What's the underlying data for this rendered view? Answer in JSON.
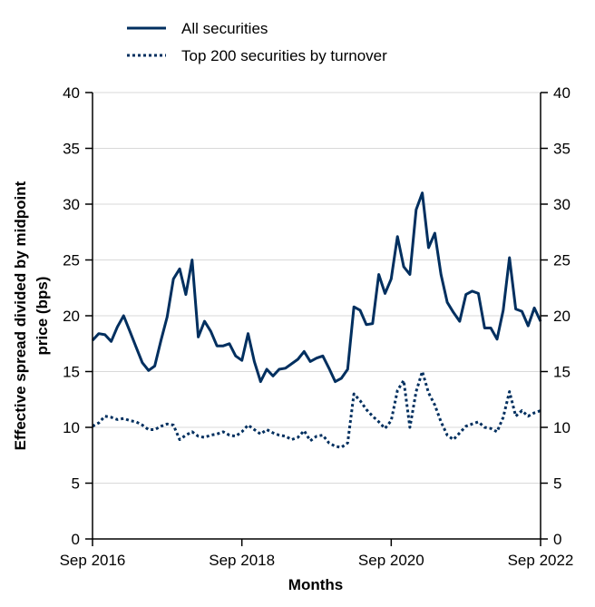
{
  "chart_data": {
    "type": "line",
    "title": "",
    "xlabel": "Months",
    "ylabel_lines": [
      "Effective spread divided by midpoint",
      "price (bps)"
    ],
    "ylim": [
      0,
      40
    ],
    "yticks": [
      "0",
      "5",
      "10",
      "15",
      "20",
      "25",
      "30",
      "35",
      "40"
    ],
    "secondary_y_axis": true,
    "xlim": [
      "2016-09",
      "2022-09"
    ],
    "xticks": [
      {
        "label": "Sep 2016",
        "date": "2016-09"
      },
      {
        "label": "Sep 2018",
        "date": "2018-09"
      },
      {
        "label": "Sep 2020",
        "date": "2020-09"
      },
      {
        "label": "Sep 2022",
        "date": "2022-09"
      }
    ],
    "grid": "horizontal",
    "legend_position": "top-left",
    "series": [
      {
        "name": "All securities",
        "style": "solid",
        "color": "#002f5f",
        "points": [
          [
            "2016-09",
            17.8
          ],
          [
            "2016-10",
            18.4
          ],
          [
            "2016-11",
            18.3
          ],
          [
            "2016-12",
            17.7
          ],
          [
            "2017-01",
            19.0
          ],
          [
            "2017-02",
            20.0
          ],
          [
            "2017-03",
            18.6
          ],
          [
            "2017-04",
            17.2
          ],
          [
            "2017-05",
            15.8
          ],
          [
            "2017-06",
            15.1
          ],
          [
            "2017-07",
            15.5
          ],
          [
            "2017-08",
            17.8
          ],
          [
            "2017-09",
            19.9
          ],
          [
            "2017-10",
            23.3
          ],
          [
            "2017-11",
            24.2
          ],
          [
            "2017-12",
            21.9
          ],
          [
            "2018-01",
            25.0
          ],
          [
            "2018-02",
            18.1
          ],
          [
            "2018-03",
            19.5
          ],
          [
            "2018-04",
            18.6
          ],
          [
            "2018-05",
            17.3
          ],
          [
            "2018-06",
            17.3
          ],
          [
            "2018-07",
            17.5
          ],
          [
            "2018-08",
            16.4
          ],
          [
            "2018-09",
            16.0
          ],
          [
            "2018-10",
            18.4
          ],
          [
            "2018-11",
            15.9
          ],
          [
            "2018-12",
            14.1
          ],
          [
            "2019-01",
            15.2
          ],
          [
            "2019-02",
            14.6
          ],
          [
            "2019-03",
            15.2
          ],
          [
            "2019-04",
            15.3
          ],
          [
            "2019-05",
            15.7
          ],
          [
            "2019-06",
            16.1
          ],
          [
            "2019-07",
            16.8
          ],
          [
            "2019-08",
            15.9
          ],
          [
            "2019-09",
            16.2
          ],
          [
            "2019-10",
            16.4
          ],
          [
            "2019-11",
            15.3
          ],
          [
            "2019-12",
            14.1
          ],
          [
            "2020-01",
            14.4
          ],
          [
            "2020-02",
            15.2
          ],
          [
            "2020-03",
            20.8
          ],
          [
            "2020-04",
            20.5
          ],
          [
            "2020-05",
            19.2
          ],
          [
            "2020-06",
            19.3
          ],
          [
            "2020-07",
            23.7
          ],
          [
            "2020-08",
            22.0
          ],
          [
            "2020-09",
            23.3
          ],
          [
            "2020-10",
            27.1
          ],
          [
            "2020-11",
            24.4
          ],
          [
            "2020-12",
            23.7
          ],
          [
            "2021-01",
            29.5
          ],
          [
            "2021-02",
            31.0
          ],
          [
            "2021-03",
            26.1
          ],
          [
            "2021-04",
            27.4
          ],
          [
            "2021-05",
            23.7
          ],
          [
            "2021-06",
            21.2
          ],
          [
            "2021-07",
            20.3
          ],
          [
            "2021-08",
            19.5
          ],
          [
            "2021-09",
            21.9
          ],
          [
            "2021-10",
            22.2
          ],
          [
            "2021-11",
            22.0
          ],
          [
            "2021-12",
            18.9
          ],
          [
            "2022-01",
            18.9
          ],
          [
            "2022-02",
            17.9
          ],
          [
            "2022-03",
            20.5
          ],
          [
            "2022-04",
            25.2
          ],
          [
            "2022-05",
            20.6
          ],
          [
            "2022-06",
            20.4
          ],
          [
            "2022-07",
            19.1
          ],
          [
            "2022-08",
            20.7
          ],
          [
            "2022-09",
            19.5
          ]
        ]
      },
      {
        "name": "Top 200 securities by turnover",
        "style": "dotted",
        "color": "#002f5f",
        "points": [
          [
            "2016-09",
            10.1
          ],
          [
            "2016-10",
            10.4
          ],
          [
            "2016-11",
            11.0
          ],
          [
            "2016-12",
            10.9
          ],
          [
            "2017-01",
            10.7
          ],
          [
            "2017-02",
            10.8
          ],
          [
            "2017-03",
            10.6
          ],
          [
            "2017-04",
            10.5
          ],
          [
            "2017-05",
            10.2
          ],
          [
            "2017-06",
            9.8
          ],
          [
            "2017-07",
            9.8
          ],
          [
            "2017-08",
            10.1
          ],
          [
            "2017-09",
            10.3
          ],
          [
            "2017-10",
            10.2
          ],
          [
            "2017-11",
            8.9
          ],
          [
            "2017-12",
            9.3
          ],
          [
            "2018-01",
            9.6
          ],
          [
            "2018-02",
            9.2
          ],
          [
            "2018-03",
            9.1
          ],
          [
            "2018-04",
            9.3
          ],
          [
            "2018-05",
            9.4
          ],
          [
            "2018-06",
            9.6
          ],
          [
            "2018-07",
            9.3
          ],
          [
            "2018-08",
            9.2
          ],
          [
            "2018-09",
            9.6
          ],
          [
            "2018-10",
            10.2
          ],
          [
            "2018-11",
            9.8
          ],
          [
            "2018-12",
            9.4
          ],
          [
            "2019-01",
            9.8
          ],
          [
            "2019-02",
            9.5
          ],
          [
            "2019-03",
            9.3
          ],
          [
            "2019-04",
            9.2
          ],
          [
            "2019-05",
            8.9
          ],
          [
            "2019-06",
            9.1
          ],
          [
            "2019-07",
            9.7
          ],
          [
            "2019-08",
            8.8
          ],
          [
            "2019-09",
            9.2
          ],
          [
            "2019-10",
            9.3
          ],
          [
            "2019-11",
            8.6
          ],
          [
            "2019-12",
            8.3
          ],
          [
            "2020-01",
            8.2
          ],
          [
            "2020-02",
            8.6
          ],
          [
            "2020-03",
            13.0
          ],
          [
            "2020-04",
            12.4
          ],
          [
            "2020-05",
            11.6
          ],
          [
            "2020-06",
            11.0
          ],
          [
            "2020-07",
            10.5
          ],
          [
            "2020-08",
            9.9
          ],
          [
            "2020-09",
            10.6
          ],
          [
            "2020-10",
            13.3
          ],
          [
            "2020-11",
            14.2
          ],
          [
            "2020-12",
            10.0
          ],
          [
            "2021-01",
            13.2
          ],
          [
            "2021-02",
            15.0
          ],
          [
            "2021-03",
            13.1
          ],
          [
            "2021-04",
            12.0
          ],
          [
            "2021-05",
            10.5
          ],
          [
            "2021-06",
            9.3
          ],
          [
            "2021-07",
            8.9
          ],
          [
            "2021-08",
            9.5
          ],
          [
            "2021-09",
            10.1
          ],
          [
            "2021-10",
            10.3
          ],
          [
            "2021-11",
            10.5
          ],
          [
            "2021-12",
            10.0
          ],
          [
            "2022-01",
            9.9
          ],
          [
            "2022-02",
            9.6
          ],
          [
            "2022-03",
            10.9
          ],
          [
            "2022-04",
            13.2
          ],
          [
            "2022-05",
            11.0
          ],
          [
            "2022-06",
            11.5
          ],
          [
            "2022-07",
            11.0
          ],
          [
            "2022-08",
            11.3
          ],
          [
            "2022-09",
            11.5
          ]
        ]
      }
    ]
  }
}
